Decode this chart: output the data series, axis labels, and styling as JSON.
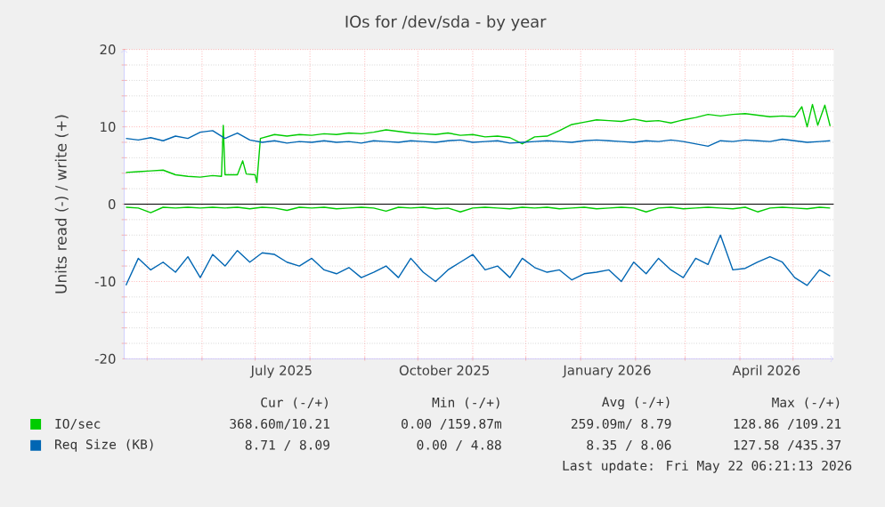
{
  "chart_data": {
    "type": "line",
    "title": "IOs for /dev/sda - by year",
    "ylabel": "Units read (-) / write (+)",
    "xlim": [
      "2025-04-18",
      "2026-05-24"
    ],
    "ylim": [
      -20,
      20
    ],
    "yticks": [
      -20,
      -10,
      0,
      10,
      20
    ],
    "xticks": [
      {
        "value": "2025-05-01",
        "label": null
      },
      {
        "value": "2025-06-01",
        "label": null
      },
      {
        "value": "2025-07-01",
        "label": null
      },
      {
        "value": "2025-08-01",
        "label": null
      },
      {
        "value": "2025-09-01",
        "label": null
      },
      {
        "value": "2025-10-01",
        "label": null
      },
      {
        "value": "2025-11-01",
        "label": null
      },
      {
        "value": "2025-12-01",
        "label": null
      },
      {
        "value": "2026-01-01",
        "label": null
      },
      {
        "value": "2026-02-01",
        "label": null
      },
      {
        "value": "2026-03-01",
        "label": null
      },
      {
        "value": "2026-04-01",
        "label": null
      },
      {
        "value": "2026-05-01",
        "label": null
      },
      {
        "value": "2025-07-16",
        "label": "July 2025"
      },
      {
        "value": "2025-10-16",
        "label": "October 2025"
      },
      {
        "value": "2026-01-16",
        "label": "January 2026"
      },
      {
        "value": "2026-04-16",
        "label": "April 2026"
      }
    ],
    "grid": true,
    "legend": "bottom",
    "ref_lines": [
      {
        "axis": "y",
        "value": 0,
        "color": "#000000"
      }
    ],
    "series": [
      {
        "name": "IO/sec",
        "color": "#00cc00",
        "x": [
          "2025-04-19",
          "2025-04-26",
          "2025-05-03",
          "2025-05-10",
          "2025-05-17",
          "2025-05-24",
          "2025-05-31",
          "2025-06-07",
          "2025-06-12",
          "2025-06-13",
          "2025-06-14",
          "2025-06-21",
          "2025-06-24",
          "2025-06-26",
          "2025-07-01",
          "2025-07-02",
          "2025-07-04",
          "2025-07-12",
          "2025-07-19",
          "2025-07-26",
          "2025-08-02",
          "2025-08-09",
          "2025-08-16",
          "2025-08-23",
          "2025-08-30",
          "2025-09-06",
          "2025-09-13",
          "2025-09-20",
          "2025-09-27",
          "2025-10-04",
          "2025-10-11",
          "2025-10-18",
          "2025-10-25",
          "2025-11-01",
          "2025-11-08",
          "2025-11-15",
          "2025-11-22",
          "2025-11-29",
          "2025-12-06",
          "2025-12-13",
          "2025-12-20",
          "2025-12-27",
          "2026-01-03",
          "2026-01-10",
          "2026-01-17",
          "2026-01-24",
          "2026-01-31",
          "2026-02-07",
          "2026-02-14",
          "2026-02-21",
          "2026-02-28",
          "2026-03-07",
          "2026-03-14",
          "2026-03-21",
          "2026-03-28",
          "2026-04-04",
          "2026-04-11",
          "2026-04-18",
          "2026-04-25",
          "2026-05-02",
          "2026-05-06",
          "2026-05-09",
          "2026-05-12",
          "2026-05-15",
          "2026-05-19",
          "2026-05-22"
        ],
        "values": [
          4.1,
          4.2,
          4.3,
          4.4,
          3.8,
          3.6,
          3.5,
          3.7,
          3.6,
          10.2,
          3.8,
          3.8,
          5.6,
          3.9,
          3.8,
          2.8,
          8.5,
          9.0,
          8.8,
          9.0,
          8.9,
          9.1,
          9.0,
          9.2,
          9.1,
          9.3,
          9.6,
          9.4,
          9.2,
          9.1,
          9.0,
          9.2,
          8.9,
          9.0,
          8.7,
          8.8,
          8.6,
          7.8,
          8.7,
          8.8,
          9.5,
          10.3,
          10.6,
          10.9,
          10.8,
          10.7,
          11.0,
          10.7,
          10.8,
          10.5,
          10.9,
          11.2,
          11.6,
          11.4,
          11.6,
          11.7,
          11.5,
          11.3,
          11.4,
          11.3,
          12.6,
          10.0,
          12.9,
          10.2,
          12.8,
          10.1
        ]
      },
      {
        "color": "#00cc00",
        "x": [
          "2025-04-19",
          "2025-04-26",
          "2025-05-03",
          "2025-05-10",
          "2025-05-17",
          "2025-05-24",
          "2025-05-31",
          "2025-06-07",
          "2025-06-14",
          "2025-06-21",
          "2025-06-28",
          "2025-07-05",
          "2025-07-12",
          "2025-07-19",
          "2025-07-26",
          "2025-08-02",
          "2025-08-09",
          "2025-08-16",
          "2025-08-23",
          "2025-08-30",
          "2025-09-06",
          "2025-09-13",
          "2025-09-20",
          "2025-09-27",
          "2025-10-04",
          "2025-10-11",
          "2025-10-18",
          "2025-10-25",
          "2025-11-01",
          "2025-11-08",
          "2025-11-15",
          "2025-11-22",
          "2025-11-29",
          "2025-12-06",
          "2025-12-13",
          "2025-12-20",
          "2025-12-27",
          "2026-01-03",
          "2026-01-10",
          "2026-01-17",
          "2026-01-24",
          "2026-01-31",
          "2026-02-07",
          "2026-02-14",
          "2026-02-21",
          "2026-02-28",
          "2026-03-07",
          "2026-03-14",
          "2026-03-21",
          "2026-03-28",
          "2026-04-04",
          "2026-04-11",
          "2026-04-18",
          "2026-04-25",
          "2026-05-02",
          "2026-05-09",
          "2026-05-16",
          "2026-05-22"
        ],
        "values": [
          -0.4,
          -0.5,
          -1.1,
          -0.4,
          -0.5,
          -0.4,
          -0.5,
          -0.4,
          -0.5,
          -0.4,
          -0.6,
          -0.4,
          -0.5,
          -0.8,
          -0.4,
          -0.5,
          -0.4,
          -0.6,
          -0.5,
          -0.4,
          -0.5,
          -0.9,
          -0.4,
          -0.5,
          -0.4,
          -0.6,
          -0.5,
          -1.0,
          -0.5,
          -0.4,
          -0.5,
          -0.6,
          -0.4,
          -0.5,
          -0.4,
          -0.6,
          -0.5,
          -0.4,
          -0.6,
          -0.5,
          -0.4,
          -0.5,
          -1.0,
          -0.5,
          -0.4,
          -0.6,
          -0.5,
          -0.4,
          -0.5,
          -0.6,
          -0.4,
          -1.0,
          -0.5,
          -0.4,
          -0.5,
          -0.6,
          -0.4,
          -0.5
        ]
      },
      {
        "name": "Req Size (KB)",
        "color": "#0066b3",
        "x": [
          "2025-04-19",
          "2025-04-26",
          "2025-05-03",
          "2025-05-10",
          "2025-05-17",
          "2025-05-24",
          "2025-05-31",
          "2025-06-07",
          "2025-06-14",
          "2025-06-21",
          "2025-06-28",
          "2025-07-05",
          "2025-07-12",
          "2025-07-19",
          "2025-07-26",
          "2025-08-02",
          "2025-08-09",
          "2025-08-16",
          "2025-08-23",
          "2025-08-30",
          "2025-09-06",
          "2025-09-13",
          "2025-09-20",
          "2025-09-27",
          "2025-10-04",
          "2025-10-11",
          "2025-10-18",
          "2025-10-25",
          "2025-11-01",
          "2025-11-08",
          "2025-11-15",
          "2025-11-22",
          "2025-11-29",
          "2025-12-06",
          "2025-12-13",
          "2025-12-20",
          "2025-12-27",
          "2026-01-03",
          "2026-01-10",
          "2026-01-17",
          "2026-01-24",
          "2026-01-31",
          "2026-02-07",
          "2026-02-14",
          "2026-02-21",
          "2026-02-28",
          "2026-03-07",
          "2026-03-14",
          "2026-03-21",
          "2026-03-28",
          "2026-04-04",
          "2026-04-11",
          "2026-04-18",
          "2026-04-25",
          "2026-05-02",
          "2026-05-09",
          "2026-05-16",
          "2026-05-22"
        ],
        "values": [
          8.5,
          8.3,
          8.6,
          8.2,
          8.8,
          8.5,
          9.3,
          9.5,
          8.5,
          9.2,
          8.3,
          8.0,
          8.2,
          7.9,
          8.1,
          8.0,
          8.2,
          8.0,
          8.1,
          7.9,
          8.2,
          8.1,
          8.0,
          8.2,
          8.1,
          8.0,
          8.2,
          8.3,
          8.0,
          8.1,
          8.2,
          7.9,
          8.0,
          8.1,
          8.2,
          8.1,
          8.0,
          8.2,
          8.3,
          8.2,
          8.1,
          8.0,
          8.2,
          8.1,
          8.3,
          8.1,
          7.8,
          7.5,
          8.2,
          8.1,
          8.3,
          8.2,
          8.1,
          8.4,
          8.2,
          8.0,
          8.1,
          8.2
        ]
      },
      {
        "color": "#0066b3",
        "x": [
          "2025-04-19",
          "2025-04-26",
          "2025-05-03",
          "2025-05-10",
          "2025-05-17",
          "2025-05-24",
          "2025-05-31",
          "2025-06-07",
          "2025-06-14",
          "2025-06-21",
          "2025-06-28",
          "2025-07-05",
          "2025-07-12",
          "2025-07-19",
          "2025-07-26",
          "2025-08-02",
          "2025-08-09",
          "2025-08-16",
          "2025-08-23",
          "2025-08-30",
          "2025-09-06",
          "2025-09-13",
          "2025-09-20",
          "2025-09-27",
          "2025-10-04",
          "2025-10-11",
          "2025-10-18",
          "2025-10-25",
          "2025-11-01",
          "2025-11-08",
          "2025-11-15",
          "2025-11-22",
          "2025-11-29",
          "2025-12-06",
          "2025-12-13",
          "2025-12-20",
          "2025-12-27",
          "2026-01-03",
          "2026-01-10",
          "2026-01-17",
          "2026-01-24",
          "2026-01-31",
          "2026-02-07",
          "2026-02-14",
          "2026-02-21",
          "2026-02-28",
          "2026-03-07",
          "2026-03-14",
          "2026-03-21",
          "2026-03-28",
          "2026-04-04",
          "2026-04-11",
          "2026-04-18",
          "2026-04-25",
          "2026-05-02",
          "2026-05-09",
          "2026-05-16",
          "2026-05-22"
        ],
        "values": [
          -10.5,
          -7,
          -8.5,
          -7.5,
          -8.8,
          -6.8,
          -9.5,
          -6.5,
          -8,
          -6,
          -7.5,
          -6.3,
          -6.5,
          -7.5,
          -8,
          -7,
          -8.5,
          -9,
          -8.2,
          -9.5,
          -8.8,
          -8,
          -9.5,
          -7,
          -8.8,
          -10,
          -8.5,
          -7.5,
          -6.5,
          -8.5,
          -8,
          -9.5,
          -7,
          -8.2,
          -8.8,
          -8.5,
          -9.8,
          -9,
          -8.8,
          -8.5,
          -10,
          -7.5,
          -9,
          -7,
          -8.5,
          -9.5,
          -7,
          -7.8,
          -4,
          -8.5,
          -8.3,
          -7.5,
          -6.8,
          -7.5,
          -9.5,
          -10.5,
          -8.5,
          -9.3
        ]
      }
    ],
    "annotations": [
      "Cur (-/+)",
      "Min (-/+)",
      "Avg (-/+)",
      "Max (-/+)",
      "368.60m/10.21",
      "0.00 /159.87m",
      "259.09m/ 8.79",
      "128.86 /109.21",
      "8.71 / 8.09",
      "0.00 / 4.88",
      "8.35 / 8.06",
      "127.58 /435.37",
      "Last update: Fri May 22 06:21:13 2026"
    ]
  }
}
